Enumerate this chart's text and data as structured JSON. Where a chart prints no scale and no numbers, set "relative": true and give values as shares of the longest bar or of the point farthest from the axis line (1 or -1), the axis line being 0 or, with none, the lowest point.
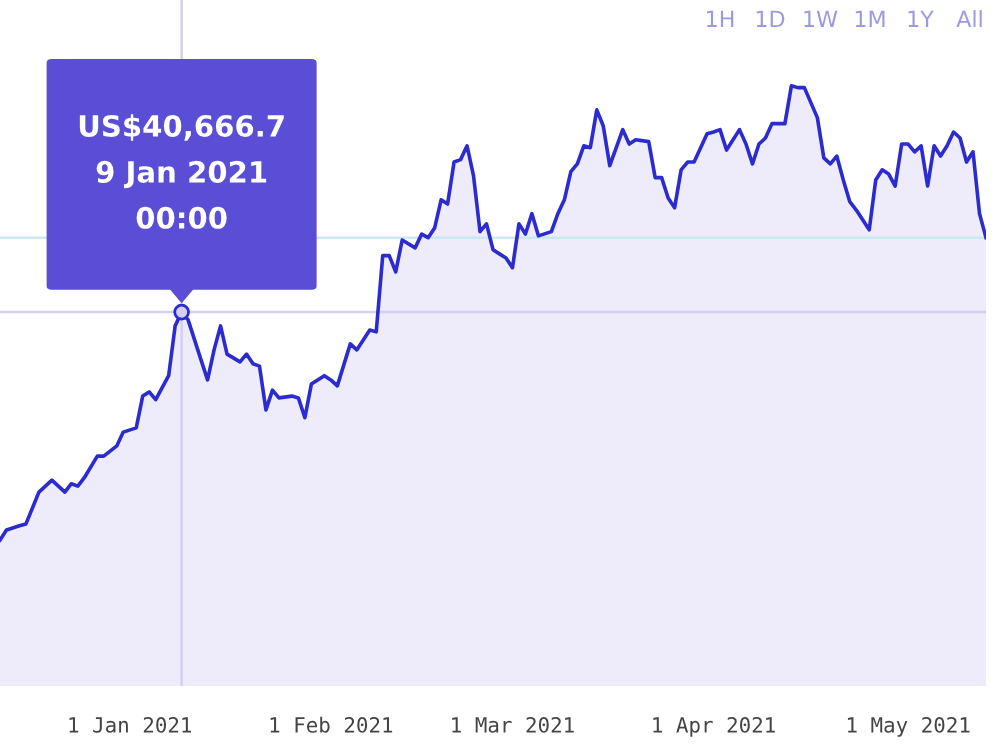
{
  "chart_data": {
    "type": "area",
    "relative": true,
    "x": [
      "2020-12-12",
      "2020-12-13",
      "2020-12-15",
      "2020-12-16",
      "2020-12-18",
      "2020-12-20",
      "2020-12-22",
      "2020-12-23",
      "2020-12-24",
      "2020-12-25",
      "2020-12-27",
      "2020-12-28",
      "2020-12-30",
      "2020-12-31",
      "2021-01-02",
      "2021-01-03",
      "2021-01-04",
      "2021-01-05",
      "2021-01-07",
      "2021-01-08",
      "2021-01-09",
      "2021-01-10",
      "2021-01-12",
      "2021-01-13",
      "2021-01-14",
      "2021-01-15",
      "2021-01-16",
      "2021-01-18",
      "2021-01-19",
      "2021-01-20",
      "2021-01-21",
      "2021-01-22",
      "2021-01-23",
      "2021-01-24",
      "2021-01-26",
      "2021-01-27",
      "2021-01-28",
      "2021-01-29",
      "2021-01-31",
      "2021-02-01",
      "2021-02-02",
      "2021-02-04",
      "2021-02-05",
      "2021-02-07",
      "2021-02-08",
      "2021-02-09",
      "2021-02-10",
      "2021-02-11",
      "2021-02-12",
      "2021-02-14",
      "2021-02-15",
      "2021-02-16",
      "2021-02-17",
      "2021-02-18",
      "2021-02-19",
      "2021-02-20",
      "2021-02-21",
      "2021-02-22",
      "2021-02-23",
      "2021-02-24",
      "2021-02-25",
      "2021-02-26",
      "2021-02-27",
      "2021-02-28",
      "2021-03-01",
      "2021-03-02",
      "2021-03-03",
      "2021-03-04",
      "2021-03-05",
      "2021-03-07",
      "2021-03-08",
      "2021-03-09",
      "2021-03-10",
      "2021-03-11",
      "2021-03-12",
      "2021-03-13",
      "2021-03-14",
      "2021-03-15",
      "2021-03-16",
      "2021-03-18",
      "2021-03-19",
      "2021-03-20",
      "2021-03-22",
      "2021-03-23",
      "2021-03-24",
      "2021-03-25",
      "2021-03-26",
      "2021-03-27",
      "2021-03-28",
      "2021-03-29",
      "2021-03-31",
      "2021-04-01",
      "2021-04-02",
      "2021-04-03",
      "2021-04-05",
      "2021-04-06",
      "2021-04-07",
      "2021-04-08",
      "2021-04-09",
      "2021-04-10",
      "2021-04-12",
      "2021-04-13",
      "2021-04-14",
      "2021-04-15",
      "2021-04-17",
      "2021-04-18",
      "2021-04-19",
      "2021-04-20",
      "2021-04-21",
      "2021-04-22",
      "2021-04-23",
      "2021-04-25",
      "2021-04-26",
      "2021-04-27",
      "2021-04-28",
      "2021-04-29",
      "2021-04-30",
      "2021-05-01",
      "2021-05-02",
      "2021-05-03",
      "2021-05-04",
      "2021-05-05",
      "2021-05-06",
      "2021-05-07",
      "2021-05-08",
      "2021-05-09",
      "2021-05-10",
      "2021-05-11",
      "2021-05-12",
      "2021-05-13"
    ],
    "series": [
      {
        "color": "#2b2bd0",
        "values": [
          0.243,
          0.26,
          0.267,
          0.27,
          0.323,
          0.343,
          0.323,
          0.337,
          0.333,
          0.347,
          0.383,
          0.383,
          0.4,
          0.423,
          0.43,
          0.483,
          0.49,
          0.477,
          0.517,
          0.6,
          0.623,
          0.61,
          0.543,
          0.51,
          0.56,
          0.6,
          0.553,
          0.54,
          0.553,
          0.537,
          0.533,
          0.46,
          0.493,
          0.48,
          0.483,
          0.48,
          0.447,
          0.503,
          0.517,
          0.51,
          0.5,
          0.57,
          0.56,
          0.593,
          0.59,
          0.717,
          0.717,
          0.69,
          0.743,
          0.73,
          0.753,
          0.747,
          0.763,
          0.81,
          0.803,
          0.873,
          0.877,
          0.9,
          0.85,
          0.757,
          0.77,
          0.727,
          0.72,
          0.713,
          0.697,
          0.77,
          0.753,
          0.787,
          0.75,
          0.757,
          0.787,
          0.81,
          0.857,
          0.87,
          0.9,
          0.897,
          0.96,
          0.933,
          0.867,
          0.927,
          0.903,
          0.91,
          0.907,
          0.847,
          0.847,
          0.813,
          0.797,
          0.86,
          0.873,
          0.873,
          0.92,
          0.923,
          0.927,
          0.893,
          0.927,
          0.903,
          0.87,
          0.903,
          0.913,
          0.937,
          0.937,
          1,
          0.997,
          0.997,
          0.947,
          0.88,
          0.87,
          0.883,
          0.843,
          0.807,
          0.793,
          0.76,
          0.843,
          0.86,
          0.853,
          0.833,
          0.903,
          0.903,
          0.89,
          0.9,
          0.833,
          0.9,
          0.883,
          0.9,
          0.923,
          0.913,
          0.873,
          0.89,
          0.787,
          0.747
        ]
      }
    ],
    "xlim": [
      "2020-12-12",
      "2021-05-13"
    ],
    "xticks": [
      {
        "value": "2021-01-01",
        "label": "1 Jan 2021"
      },
      {
        "value": "2021-02-01",
        "label": "1 Feb 2021"
      },
      {
        "value": "2021-03-01",
        "label": "1 Mar 2021"
      },
      {
        "value": "2021-04-01",
        "label": "1 Apr 2021"
      },
      {
        "value": "2021-05-01",
        "label": "1 May 2021"
      }
    ],
    "ref_lines": [
      {
        "axis": "x",
        "value": "2021-01-09",
        "color": "#d4d0f0"
      },
      {
        "axis": "y",
        "value": 0.623,
        "color": "#d4d0f0"
      },
      {
        "axis": "y",
        "value": 0.747,
        "color": "#cde8f5"
      }
    ],
    "annotations": [
      {
        "text": "US$40,666.7\n9 Jan 2021\n00:00",
        "x": "2021-01-09",
        "y": 0.623
      },
      "1H",
      "1D",
      "1W",
      "1M",
      "1Y",
      "All"
    ],
    "grid": false,
    "legend": false,
    "marker": "none",
    "line_style": "solid"
  }
}
